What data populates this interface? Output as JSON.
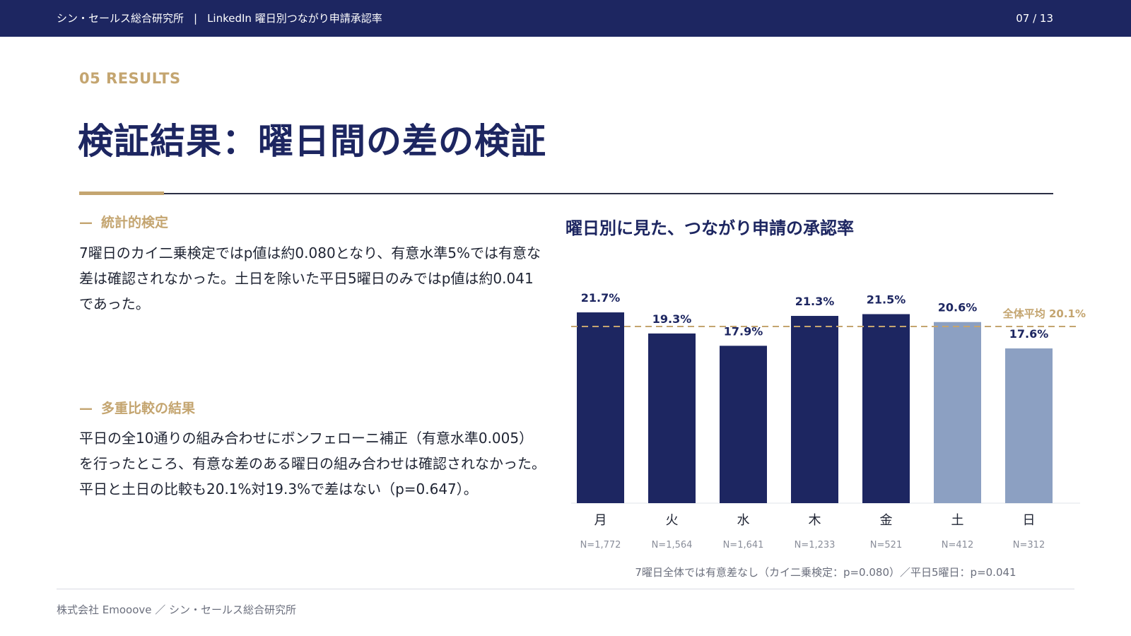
{
  "header": {
    "org": "シン・セールス総合研究所",
    "separator": "|",
    "doc_title": "LinkedIn 曜日別つながり申請承認率",
    "page": "07 / 13"
  },
  "section": {
    "label": "05  RESULTS",
    "title": "検証結果：曜日間の差の検証"
  },
  "blocks": [
    {
      "dash": "—",
      "heading": "統計的検定",
      "text": "7曜日のカイ二乗検定ではp値は約0.080となり、有意水準5%では有意な差は確認されなかった。土日を除いた平日5曜日のみではp値は約0.041であった。"
    },
    {
      "dash": "—",
      "heading": "多重比較の結果",
      "text": "平日の全10通りの組み合わせにボンフェローニ補正（有意水準0.005）を行ったところ、有意な差のある曜日の組み合わせは確認されなかった。平日と土日の比較も20.1%対19.3%で差はない（p=0.647）。"
    }
  ],
  "chart_data": {
    "type": "bar",
    "title": "曜日別に見た、つながり申請の承認率",
    "categories": [
      "月",
      "火",
      "水",
      "木",
      "金",
      "土",
      "日"
    ],
    "values": [
      21.7,
      19.3,
      17.9,
      21.3,
      21.5,
      20.6,
      17.6
    ],
    "value_labels": [
      "21.7%",
      "19.3%",
      "17.9%",
      "21.3%",
      "21.5%",
      "20.6%",
      "17.6%"
    ],
    "sample_sizes": [
      "N=1,772",
      "N=1,564",
      "N=1,641",
      "N=1,233",
      "N=521",
      "N=412",
      "N=312"
    ],
    "weekend": [
      false,
      false,
      false,
      false,
      false,
      true,
      true
    ],
    "reference_line": {
      "value": 20.1,
      "label": "全体平均 20.1%"
    },
    "note": "7曜日全体では有意差なし（カイ二乗検定：p=0.080）／平日5曜日：p=0.041",
    "ylim": [
      0,
      25
    ],
    "grid": false,
    "colors": {
      "weekday": "#1d2661",
      "weekend": "#8ca0c2",
      "reference": "#c4a570"
    }
  },
  "footer": {
    "text": "株式会社 Emooove ／ シン・セールス総合研究所"
  }
}
